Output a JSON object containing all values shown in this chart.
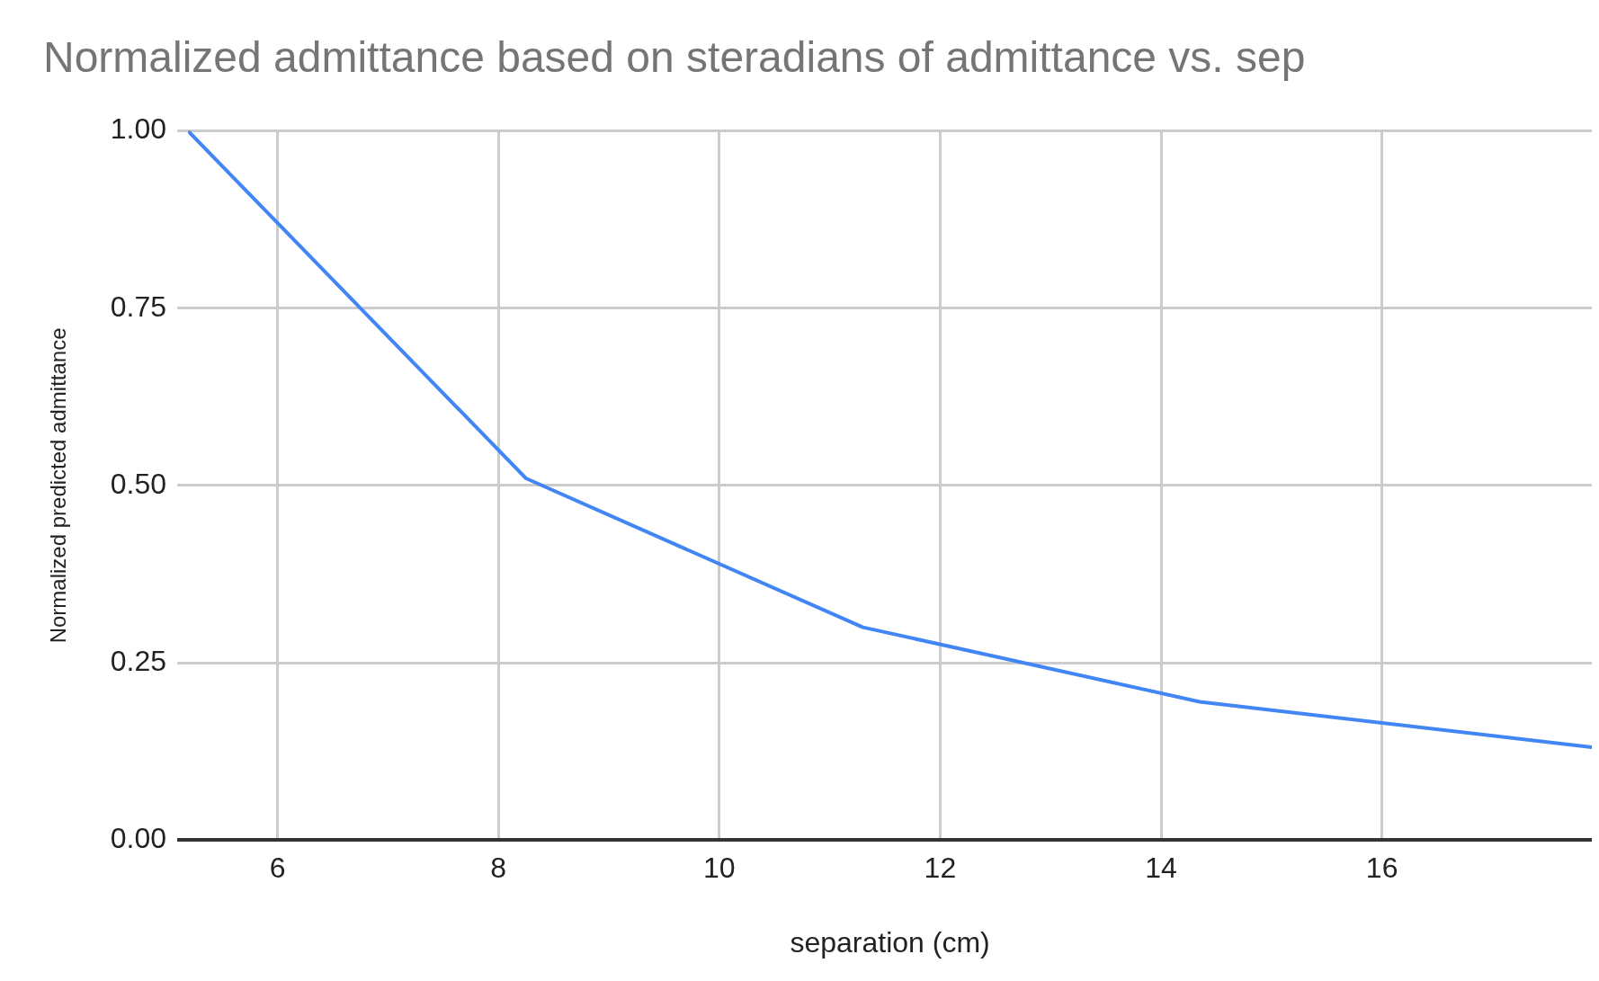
{
  "chart_data": {
    "type": "line",
    "title": "Normalized admittance based on steradians of admittance vs. sep",
    "xlabel": "separation (cm)",
    "ylabel": "Normalized predicted admittance",
    "x": [
      5.19,
      8.25,
      11.3,
      14.35,
      17.9
    ],
    "series": [
      {
        "color": "#4285f4",
        "values": [
          1.0,
          0.51,
          0.3,
          0.195,
          0.131
        ]
      }
    ],
    "xlim": [
      5.19,
      17.9
    ],
    "xticks": [
      6,
      8,
      10,
      12,
      14,
      16
    ],
    "ylim": [
      0,
      1
    ],
    "yticks": [
      {
        "value": 0,
        "label": "0.00"
      },
      {
        "value": 0.25,
        "label": "0.25"
      },
      {
        "value": 0.5,
        "label": "0.50"
      },
      {
        "value": 0.75,
        "label": "0.75"
      },
      {
        "value": 1,
        "label": "1.00"
      }
    ],
    "grid": true,
    "legend": false,
    "marker": "none",
    "line_style": "solid"
  }
}
